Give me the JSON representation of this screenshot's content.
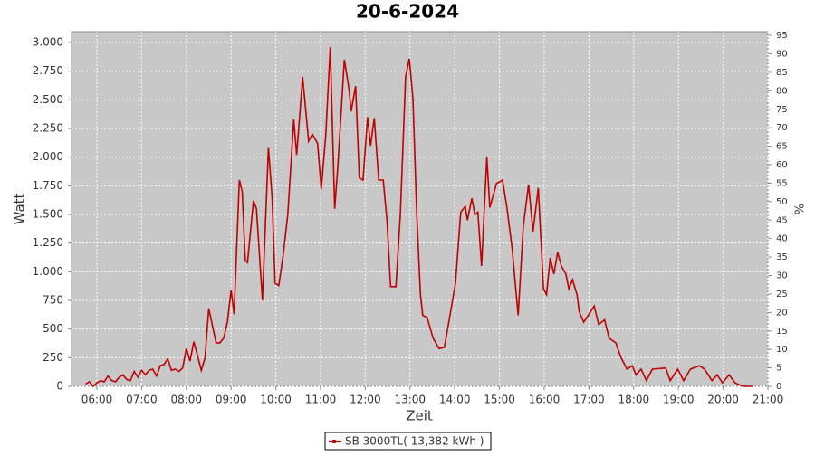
{
  "chart_data": {
    "type": "line",
    "title": "20-6-2024",
    "y_label": "Watt",
    "y2_label": "%",
    "x_label": "Zeit",
    "x": [
      "05:45",
      "05:50",
      "05:55",
      "06:00",
      "06:05",
      "06:10",
      "06:15",
      "06:20",
      "06:25",
      "06:30",
      "06:35",
      "06:40",
      "06:45",
      "06:50",
      "06:55",
      "07:00",
      "07:05",
      "07:10",
      "07:15",
      "07:20",
      "07:25",
      "07:30",
      "07:35",
      "07:40",
      "07:45",
      "07:50",
      "07:55",
      "08:00",
      "08:05",
      "08:10",
      "08:15",
      "08:20",
      "08:25",
      "08:30",
      "08:35",
      "08:40",
      "08:45",
      "08:50",
      "08:55",
      "09:00",
      "09:04",
      "09:11",
      "09:15",
      "09:19",
      "09:22",
      "09:30",
      "09:34",
      "09:42",
      "09:50",
      "09:55",
      "09:59",
      "10:04",
      "10:10",
      "10:16",
      "10:24",
      "10:28",
      "10:36",
      "10:44",
      "10:49",
      "10:56",
      "11:01",
      "11:07",
      "11:13",
      "11:19",
      "11:23",
      "11:32",
      "11:38",
      "11:41",
      "11:47",
      "11:52",
      "11:57",
      "12:03",
      "12:07",
      "12:12",
      "12:18",
      "12:24",
      "12:29",
      "12:34",
      "12:41",
      "12:47",
      "12:54",
      "12:59",
      "13:04",
      "13:09",
      "13:14",
      "13:17",
      "13:23",
      "13:31",
      "13:39",
      "13:46",
      "13:52",
      "14:01",
      "14:08",
      "14:14",
      "14:17",
      "14:23",
      "14:27",
      "14:31",
      "14:36",
      "14:43",
      "14:47",
      "14:56",
      "15:04",
      "15:10",
      "15:17",
      "15:25",
      "15:32",
      "15:39",
      "15:45",
      "15:52",
      "15:59",
      "16:03",
      "16:08",
      "16:13",
      "16:18",
      "16:23",
      "16:29",
      "16:33",
      "16:38",
      "16:44",
      "16:47",
      "16:53",
      "16:59",
      "17:07",
      "17:13",
      "17:21",
      "17:27",
      "17:36",
      "17:43",
      "17:51",
      "17:58",
      "18:03",
      "18:10",
      "18:17",
      "18:25",
      "18:43",
      "18:49",
      "18:59",
      "19:07",
      "19:16",
      "19:28",
      "19:35",
      "19:45",
      "19:52",
      "19:59",
      "20:08",
      "20:16",
      "20:23",
      "20:28",
      "20:40"
    ],
    "series": [
      {
        "name": "SB 3000TL( 13,382 kWh )",
        "color": "#c00000",
        "values": [
          20,
          40,
          0,
          30,
          50,
          40,
          90,
          50,
          40,
          80,
          100,
          60,
          50,
          130,
          80,
          140,
          100,
          140,
          150,
          90,
          180,
          190,
          240,
          140,
          150,
          130,
          160,
          330,
          220,
          390,
          270,
          140,
          250,
          680,
          530,
          380,
          380,
          420,
          560,
          840,
          630,
          1800,
          1700,
          1100,
          1080,
          1620,
          1550,
          750,
          2080,
          1650,
          900,
          880,
          1150,
          1500,
          2330,
          2020,
          2700,
          2140,
          2200,
          2120,
          1720,
          2200,
          2960,
          1550,
          1900,
          2850,
          2600,
          2400,
          2620,
          1820,
          1800,
          2350,
          2100,
          2340,
          1800,
          1800,
          1450,
          870,
          870,
          1500,
          2700,
          2860,
          2500,
          1500,
          800,
          620,
          600,
          420,
          330,
          340,
          560,
          900,
          1520,
          1570,
          1450,
          1640,
          1500,
          1520,
          1050,
          2000,
          1560,
          1770,
          1800,
          1560,
          1200,
          620,
          1400,
          1760,
          1350,
          1730,
          850,
          800,
          1120,
          980,
          1170,
          1050,
          980,
          850,
          930,
          800,
          650,
          560,
          620,
          700,
          540,
          580,
          420,
          380,
          250,
          150,
          180,
          100,
          150,
          50,
          150,
          160,
          50,
          150,
          50,
          150,
          180,
          150,
          50,
          100,
          30,
          100,
          30,
          10,
          0,
          0
        ]
      }
    ],
    "xlim": [
      "05:26",
      "21:00"
    ],
    "xticks": [
      "06:00",
      "07:00",
      "08:00",
      "09:00",
      "10:00",
      "11:00",
      "12:00",
      "13:00",
      "14:00",
      "15:00",
      "16:00",
      "17:00",
      "18:00",
      "19:00",
      "20:00",
      "21:00"
    ],
    "ylim": [
      0,
      3095
    ],
    "yticks": [
      0,
      250,
      500,
      750,
      {
        "value": 1000,
        "label": "1.000"
      },
      {
        "value": 1250,
        "label": "1.250"
      },
      {
        "value": 1500,
        "label": "1.500"
      },
      {
        "value": 1750,
        "label": "1.750"
      },
      {
        "value": 2000,
        "label": "2.000"
      },
      {
        "value": 2250,
        "label": "2.250"
      },
      {
        "value": 2500,
        "label": "2.500"
      },
      {
        "value": 2750,
        "label": "2.750"
      },
      {
        "value": 3000,
        "label": "3.000"
      }
    ],
    "y2lim": [
      0,
      96
    ],
    "y2ticks": [
      0,
      5,
      10,
      15,
      20,
      25,
      30,
      35,
      40,
      45,
      50,
      55,
      60,
      65,
      70,
      75,
      80,
      85,
      90,
      95
    ],
    "grid": true,
    "legend": "bottom"
  }
}
